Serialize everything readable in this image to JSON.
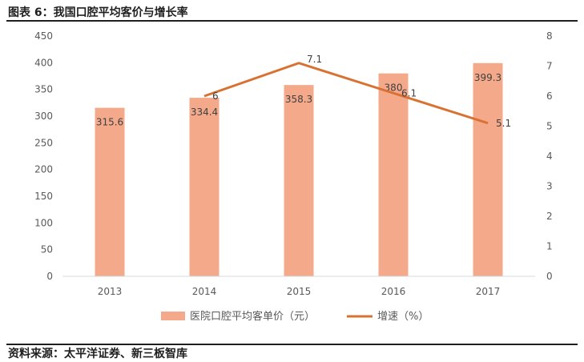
{
  "header": {
    "title": "图表 6：我国口腔平均客价与增长率"
  },
  "footer": {
    "source": "资料来源：太平洋证券、新三板智库"
  },
  "chart_data": {
    "type": "bar",
    "categories": [
      "2013",
      "2014",
      "2015",
      "2016",
      "2017"
    ],
    "series": [
      {
        "name": "医院口腔平均客单价（元）",
        "type": "bar",
        "axis": "left",
        "values": [
          315.6,
          334.4,
          358.3,
          380,
          399.3
        ],
        "labels": [
          "315.6",
          "334.4",
          "358.3",
          "380",
          "399.3"
        ]
      },
      {
        "name": "增速（%）",
        "type": "line",
        "axis": "right",
        "values": [
          null,
          6,
          7.1,
          6.1,
          5.1
        ],
        "labels": [
          "",
          "6",
          "7.1",
          "6.1",
          "5.1"
        ]
      }
    ],
    "y_left": {
      "ylim": [
        0,
        450
      ],
      "ticks": [
        "0",
        "50",
        "100",
        "150",
        "200",
        "250",
        "300",
        "350",
        "400",
        "450"
      ]
    },
    "y_right": {
      "ylim": [
        0,
        8
      ],
      "ticks": [
        "0",
        "1",
        "2",
        "3",
        "4",
        "5",
        "6",
        "7",
        "8"
      ]
    },
    "legend_position": "bottom",
    "grid": false,
    "colors": {
      "bar": "#f4a98a",
      "line": "#d87131"
    }
  }
}
